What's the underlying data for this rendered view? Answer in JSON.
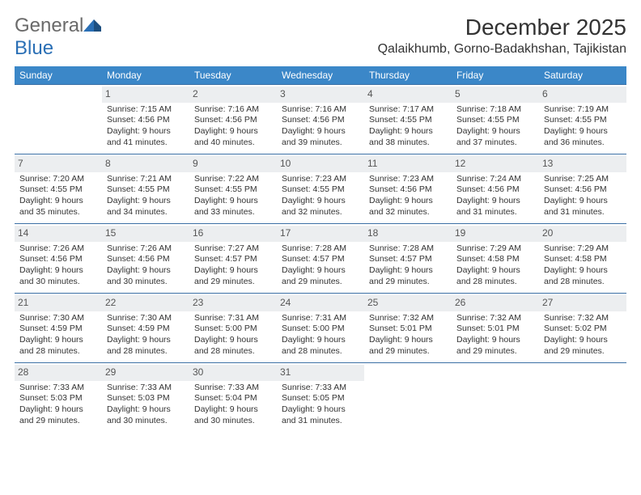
{
  "brand": {
    "part1": "General",
    "part2": "Blue"
  },
  "title": "December 2025",
  "location": "Qalaikhumb, Gorno-Badakhshan, Tajikistan",
  "colors": {
    "header_bg": "#3b87c8",
    "header_text": "#ffffff",
    "row_border": "#3b6fa5",
    "daynum_bg": "#eceef0",
    "daynum_text": "#555555",
    "body_text": "#333333",
    "brand_gray": "#6a6a6a",
    "brand_blue": "#2a6fb5",
    "page_bg": "#ffffff"
  },
  "typography": {
    "month_title_fontsize": 28,
    "location_fontsize": 16,
    "weekday_fontsize": 12,
    "daynum_fontsize": 12,
    "cell_fontsize": 10.5,
    "logo_fontsize": 24
  },
  "weekdays": [
    "Sunday",
    "Monday",
    "Tuesday",
    "Wednesday",
    "Thursday",
    "Friday",
    "Saturday"
  ],
  "weeks": [
    [
      null,
      {
        "n": "1",
        "sr": "7:15 AM",
        "ss": "4:56 PM",
        "dl": "9 hours and 41 minutes."
      },
      {
        "n": "2",
        "sr": "7:16 AM",
        "ss": "4:56 PM",
        "dl": "9 hours and 40 minutes."
      },
      {
        "n": "3",
        "sr": "7:16 AM",
        "ss": "4:56 PM",
        "dl": "9 hours and 39 minutes."
      },
      {
        "n": "4",
        "sr": "7:17 AM",
        "ss": "4:55 PM",
        "dl": "9 hours and 38 minutes."
      },
      {
        "n": "5",
        "sr": "7:18 AM",
        "ss": "4:55 PM",
        "dl": "9 hours and 37 minutes."
      },
      {
        "n": "6",
        "sr": "7:19 AM",
        "ss": "4:55 PM",
        "dl": "9 hours and 36 minutes."
      }
    ],
    [
      {
        "n": "7",
        "sr": "7:20 AM",
        "ss": "4:55 PM",
        "dl": "9 hours and 35 minutes."
      },
      {
        "n": "8",
        "sr": "7:21 AM",
        "ss": "4:55 PM",
        "dl": "9 hours and 34 minutes."
      },
      {
        "n": "9",
        "sr": "7:22 AM",
        "ss": "4:55 PM",
        "dl": "9 hours and 33 minutes."
      },
      {
        "n": "10",
        "sr": "7:23 AM",
        "ss": "4:55 PM",
        "dl": "9 hours and 32 minutes."
      },
      {
        "n": "11",
        "sr": "7:23 AM",
        "ss": "4:56 PM",
        "dl": "9 hours and 32 minutes."
      },
      {
        "n": "12",
        "sr": "7:24 AM",
        "ss": "4:56 PM",
        "dl": "9 hours and 31 minutes."
      },
      {
        "n": "13",
        "sr": "7:25 AM",
        "ss": "4:56 PM",
        "dl": "9 hours and 31 minutes."
      }
    ],
    [
      {
        "n": "14",
        "sr": "7:26 AM",
        "ss": "4:56 PM",
        "dl": "9 hours and 30 minutes."
      },
      {
        "n": "15",
        "sr": "7:26 AM",
        "ss": "4:56 PM",
        "dl": "9 hours and 30 minutes."
      },
      {
        "n": "16",
        "sr": "7:27 AM",
        "ss": "4:57 PM",
        "dl": "9 hours and 29 minutes."
      },
      {
        "n": "17",
        "sr": "7:28 AM",
        "ss": "4:57 PM",
        "dl": "9 hours and 29 minutes."
      },
      {
        "n": "18",
        "sr": "7:28 AM",
        "ss": "4:57 PM",
        "dl": "9 hours and 29 minutes."
      },
      {
        "n": "19",
        "sr": "7:29 AM",
        "ss": "4:58 PM",
        "dl": "9 hours and 28 minutes."
      },
      {
        "n": "20",
        "sr": "7:29 AM",
        "ss": "4:58 PM",
        "dl": "9 hours and 28 minutes."
      }
    ],
    [
      {
        "n": "21",
        "sr": "7:30 AM",
        "ss": "4:59 PM",
        "dl": "9 hours and 28 minutes."
      },
      {
        "n": "22",
        "sr": "7:30 AM",
        "ss": "4:59 PM",
        "dl": "9 hours and 28 minutes."
      },
      {
        "n": "23",
        "sr": "7:31 AM",
        "ss": "5:00 PM",
        "dl": "9 hours and 28 minutes."
      },
      {
        "n": "24",
        "sr": "7:31 AM",
        "ss": "5:00 PM",
        "dl": "9 hours and 28 minutes."
      },
      {
        "n": "25",
        "sr": "7:32 AM",
        "ss": "5:01 PM",
        "dl": "9 hours and 29 minutes."
      },
      {
        "n": "26",
        "sr": "7:32 AM",
        "ss": "5:01 PM",
        "dl": "9 hours and 29 minutes."
      },
      {
        "n": "27",
        "sr": "7:32 AM",
        "ss": "5:02 PM",
        "dl": "9 hours and 29 minutes."
      }
    ],
    [
      {
        "n": "28",
        "sr": "7:33 AM",
        "ss": "5:03 PM",
        "dl": "9 hours and 29 minutes."
      },
      {
        "n": "29",
        "sr": "7:33 AM",
        "ss": "5:03 PM",
        "dl": "9 hours and 30 minutes."
      },
      {
        "n": "30",
        "sr": "7:33 AM",
        "ss": "5:04 PM",
        "dl": "9 hours and 30 minutes."
      },
      {
        "n": "31",
        "sr": "7:33 AM",
        "ss": "5:05 PM",
        "dl": "9 hours and 31 minutes."
      },
      null,
      null,
      null
    ]
  ],
  "labels": {
    "sunrise": "Sunrise:",
    "sunset": "Sunset:",
    "daylight": "Daylight:"
  }
}
